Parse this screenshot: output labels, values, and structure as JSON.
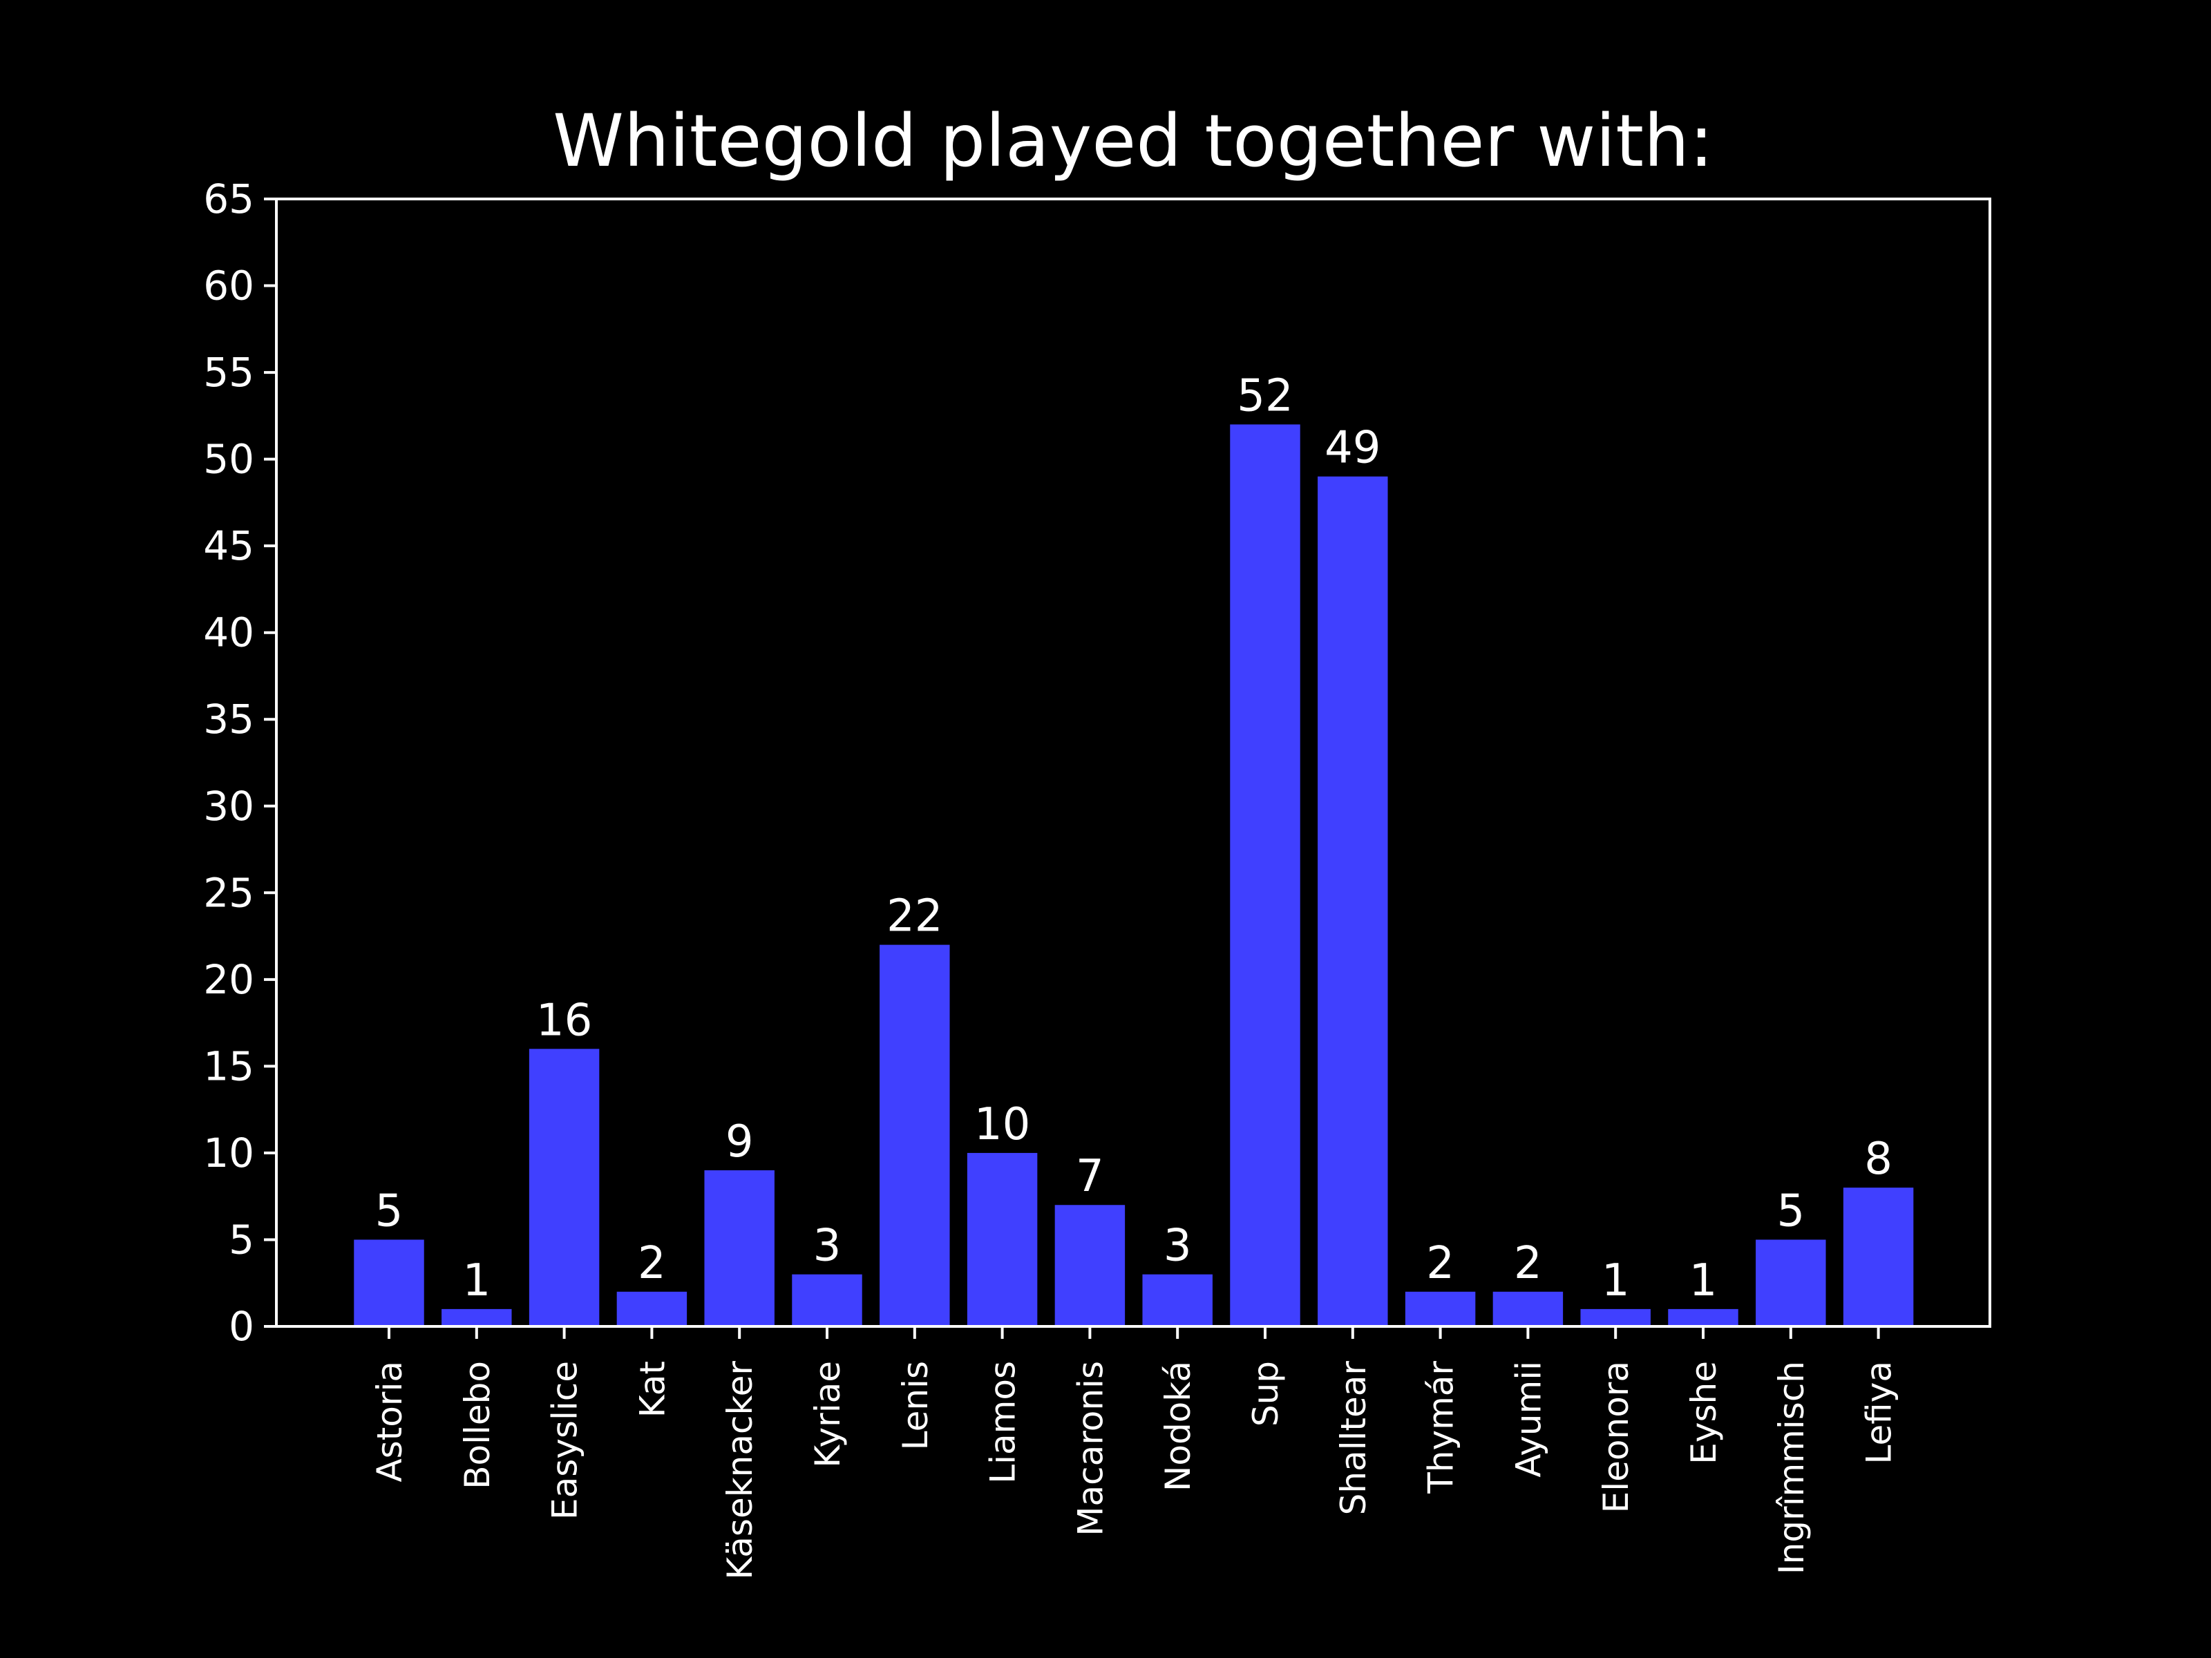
{
  "chart_data": {
    "type": "bar",
    "title": "Whitegold played together with:",
    "xlabel": "",
    "ylabel": "",
    "categories": [
      "Astoria",
      "Bollebo",
      "Easyslice",
      "Kat",
      "Käseknacker",
      "Kyriae",
      "Lenis",
      "Liamos",
      "Macaronis",
      "Nodoká",
      "Sup",
      "Shalltear",
      "Thymár",
      "Ayumii",
      "Eleonora",
      "Eyshe",
      "Ingrîmmisch",
      "Lefiya"
    ],
    "values": [
      5,
      1,
      16,
      2,
      9,
      3,
      22,
      10,
      7,
      3,
      52,
      49,
      2,
      2,
      1,
      1,
      5,
      8
    ],
    "ylim": [
      0,
      65
    ],
    "yticks": [
      0,
      5,
      10,
      15,
      20,
      25,
      30,
      35,
      40,
      45,
      50,
      55,
      60,
      65
    ],
    "grid": false,
    "legend": "none",
    "colors": {
      "background": "#000000",
      "bar": "#4040ff",
      "text": "#ffffff",
      "axes": "#ffffff"
    }
  }
}
